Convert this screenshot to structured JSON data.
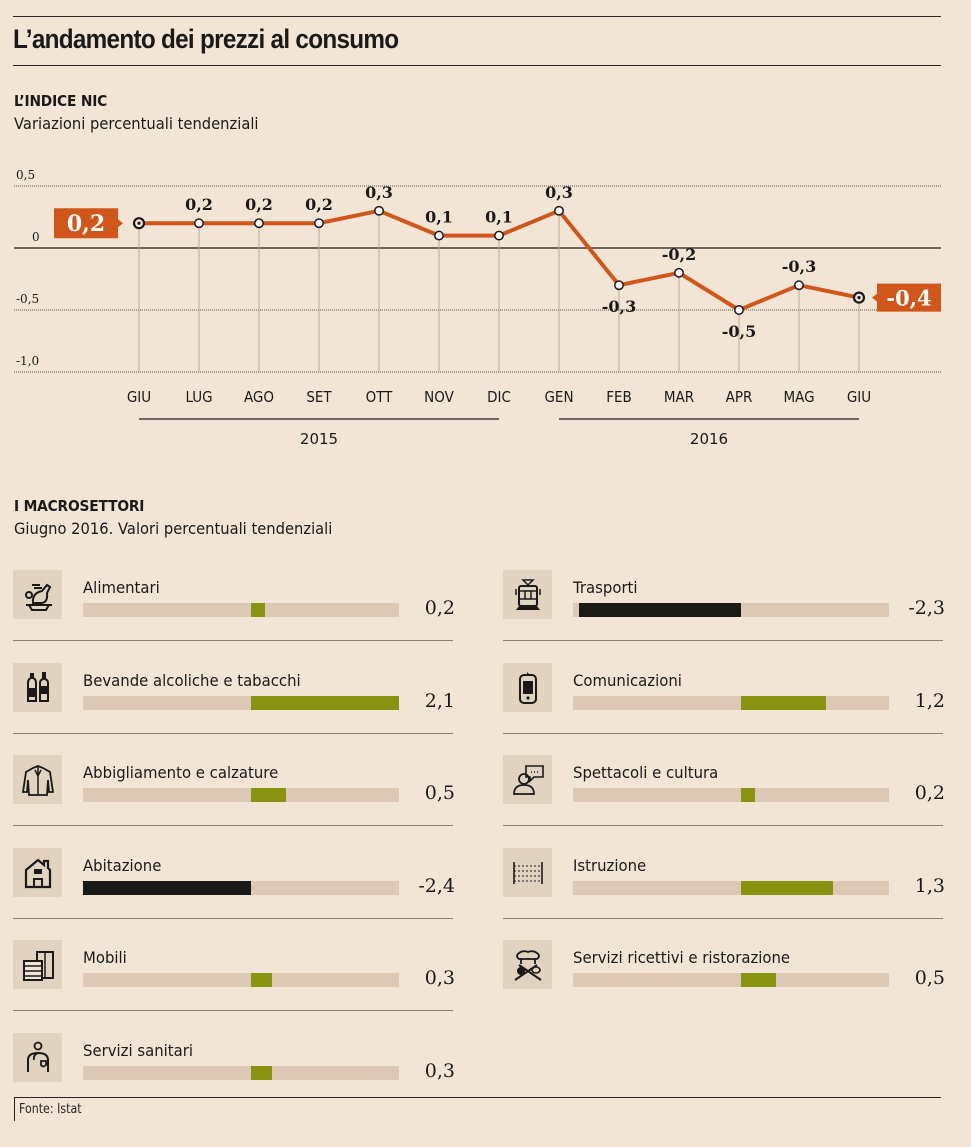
{
  "header": {
    "title": "L’andamento dei prezzi al consumo"
  },
  "nic": {
    "title": "L’INDICE NIC",
    "subtitle": "Variazioni percentuali tendenziali"
  },
  "chart_data": [
    {
      "type": "line",
      "title": "L’INDICE NIC",
      "subtitle": "Variazioni percentuali tendenziali",
      "categories": [
        "GIU",
        "LUG",
        "AGO",
        "SET",
        "OTT",
        "NOV",
        "DIC",
        "GEN",
        "FEB",
        "MAR",
        "APR",
        "MAG",
        "GIU"
      ],
      "values": [
        0.2,
        0.2,
        0.2,
        0.2,
        0.3,
        0.1,
        0.1,
        0.3,
        -0.3,
        -0.2,
        -0.5,
        -0.3,
        -0.4
      ],
      "data_labels": [
        "0,2",
        "0,2",
        "0,2",
        "0,2",
        "0,3",
        "0,1",
        "0,1",
        "0,3",
        "-0,3",
        "-0,2",
        "-0,5",
        "-0,3",
        "-0,4"
      ],
      "highlight_first": "0,2",
      "highlight_last": "-0,4",
      "year_groups": [
        {
          "label": "2015",
          "from": 0,
          "to": 6
        },
        {
          "label": "2016",
          "from": 7,
          "to": 12
        }
      ],
      "yticks": [
        0.5,
        0,
        -0.5,
        -1.0
      ],
      "ytick_labels": [
        "0,5",
        "0",
        "-0,5",
        "-1,0"
      ],
      "ylim": [
        -1.0,
        0.5
      ],
      "xlabel": "",
      "ylabel": "",
      "grid": true,
      "line_color": "#d0561a"
    },
    {
      "type": "bar",
      "orientation": "horizontal",
      "title": "I MACROSETTORI",
      "subtitle": "Giugno 2016. Valori percentuali tendenziali",
      "categories": [
        "Alimentari",
        "Bevande alcoliche e tabacchi",
        "Abbigliamento e calzature",
        "Abitazione",
        "Mobili",
        "Servizi sanitari",
        "Trasporti",
        "Comunicazioni",
        "Spettacoli e cultura",
        "Istruzione",
        "Servizi ricettivi e ristorazione"
      ],
      "values": [
        0.2,
        2.1,
        0.5,
        -2.4,
        0.3,
        0.3,
        -2.3,
        1.2,
        0.2,
        1.3,
        0.5
      ],
      "xlim": [
        -2.4,
        2.1
      ],
      "positive_color": "#889410",
      "negative_color": "#1a1a18",
      "track_color": "#dcc8b4"
    }
  ],
  "sectors": {
    "title": "I MACROSETTORI",
    "subtitle": "Giugno 2016. Valori percentuali tendenziali",
    "left": [
      {
        "label": "Alimentari",
        "value": 0.2,
        "value_label": "0,2",
        "icon": "food-icon"
      },
      {
        "label": "Bevande alcoliche e tabacchi",
        "value": 2.1,
        "value_label": "2,1",
        "icon": "bottles-icon"
      },
      {
        "label": "Abbigliamento e calzature",
        "value": 0.5,
        "value_label": "0,5",
        "icon": "jacket-icon"
      },
      {
        "label": "Abitazione",
        "value": -2.4,
        "value_label": "-2,4",
        "icon": "house-icon"
      },
      {
        "label": "Mobili",
        "value": 0.3,
        "value_label": "0,3",
        "icon": "furniture-icon"
      },
      {
        "label": "Servizi sanitari",
        "value": 0.3,
        "value_label": "0,3",
        "icon": "doctor-icon"
      }
    ],
    "right": [
      {
        "label": "Trasporti",
        "value": -2.3,
        "value_label": "-2,3",
        "icon": "tram-icon"
      },
      {
        "label": "Comunicazioni",
        "value": 1.2,
        "value_label": "1,2",
        "icon": "phone-icon"
      },
      {
        "label": "Spettacoli e cultura",
        "value": 0.2,
        "value_label": "0,2",
        "icon": "speaker-icon"
      },
      {
        "label": "Istruzione",
        "value": 1.3,
        "value_label": "1,3",
        "icon": "abacus-icon"
      },
      {
        "label": "Servizi ricettivi e ristorazione",
        "value": 0.5,
        "value_label": "0,5",
        "icon": "chef-icon"
      }
    ]
  },
  "footer": {
    "source": "Fonte: Istat"
  }
}
